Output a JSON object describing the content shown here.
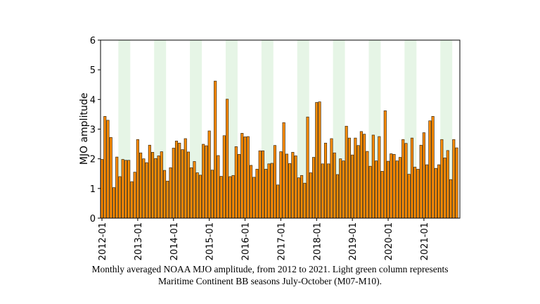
{
  "chart_data": {
    "type": "bar",
    "title": "",
    "xlabel": "",
    "ylabel": "MJO amplitude",
    "ylim": [
      0,
      6
    ],
    "yticks": [
      "0",
      "1",
      "2",
      "3",
      "4",
      "5",
      "6"
    ],
    "xticks": [
      "2012-01",
      "2013-01",
      "2014-01",
      "2015-01",
      "2016-01",
      "2017-01",
      "2018-01",
      "2019-01",
      "2020-01",
      "2021-01"
    ],
    "start_year": 2012,
    "shaded_months": [
      7,
      8,
      9,
      10
    ],
    "colors": {
      "bar": "#ff8c00",
      "edge": "#3a2a10",
      "shade": "#e6f5e6"
    },
    "values": [
      1.98,
      3.43,
      3.3,
      2.72,
      1.03,
      2.06,
      1.4,
      1.98,
      1.95,
      1.95,
      1.23,
      1.55,
      2.65,
      2.2,
      2.0,
      1.87,
      2.46,
      2.22,
      2.01,
      2.1,
      2.24,
      1.61,
      1.25,
      1.7,
      2.36,
      2.6,
      2.53,
      2.31,
      2.68,
      2.23,
      1.7,
      1.91,
      1.53,
      1.45,
      2.49,
      2.44,
      2.94,
      1.62,
      4.62,
      2.11,
      1.41,
      2.78,
      4.01,
      1.4,
      1.44,
      2.41,
      2.15,
      2.86,
      2.74,
      2.75,
      1.78,
      1.38,
      1.65,
      2.27,
      2.27,
      1.65,
      1.83,
      1.85,
      2.45,
      1.12,
      2.24,
      3.22,
      2.16,
      1.84,
      2.22,
      2.1,
      1.36,
      1.44,
      1.18,
      3.41,
      1.53,
      2.05,
      3.9,
      3.92,
      1.83,
      2.53,
      1.83,
      2.68,
      2.2,
      1.47,
      2.0,
      1.93,
      3.1,
      2.7,
      2.13,
      2.7,
      2.45,
      2.92,
      2.83,
      2.25,
      1.75,
      2.8,
      1.93,
      2.75,
      1.58,
      3.62,
      1.92,
      2.17,
      2.15,
      1.93,
      2.05,
      2.65,
      2.52,
      1.48,
      2.7,
      1.72,
      1.65,
      2.46,
      2.88,
      1.8,
      3.28,
      3.43,
      1.68,
      1.8,
      2.65,
      2.03,
      2.28,
      1.3,
      2.65,
      2.37
    ]
  },
  "caption": {
    "line1": "Monthly averaged NOAA MJO amplitude, from 2012 to 2021. Light green column represents",
    "line2": "Maritime Continent BB seasons July-October (M07-M10)."
  }
}
